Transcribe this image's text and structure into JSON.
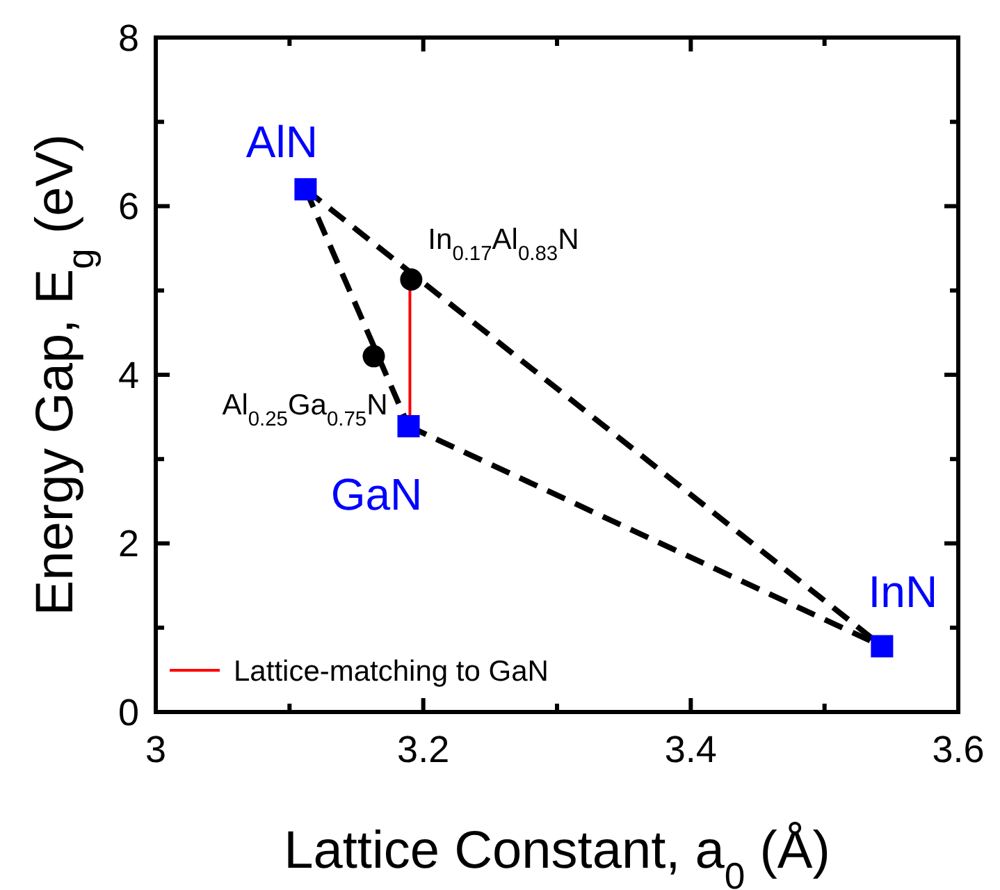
{
  "chart_data": {
    "type": "scatter",
    "xlabel": "Lattice Constant, a$_{0}$ (Å)",
    "ylabel": "Energy Gap, E$_{g}$ (eV)",
    "xlim": [
      3,
      3.6
    ],
    "xticks": [
      3,
      {
        "value": 3.1,
        "label": null
      },
      3.2,
      {
        "value": 3.3,
        "label": null
      },
      3.4,
      {
        "value": 3.5,
        "label": null
      },
      3.6
    ],
    "ylim": [
      0,
      8
    ],
    "yticks": [
      0,
      {
        "value": 1,
        "label": null
      },
      2,
      {
        "value": 3,
        "label": null
      },
      4,
      {
        "value": 5,
        "label": null
      },
      6,
      {
        "value": 7,
        "label": null
      },
      8
    ],
    "grid": false,
    "legend": "bottom left",
    "series": [
      {
        "type": "line",
        "color": "#000000",
        "line_style": "dashed",
        "marker": "none",
        "x": [
          3.112,
          3.189
        ],
        "values": [
          6.2,
          3.39
        ]
      },
      {
        "type": "line",
        "color": "#000000",
        "line_style": "dashed",
        "marker": "none",
        "x": [
          3.112,
          3.543
        ],
        "values": [
          6.2,
          0.78
        ]
      },
      {
        "type": "line",
        "color": "#000000",
        "line_style": "dashed",
        "marker": "none",
        "x": [
          3.189,
          3.543
        ],
        "values": [
          3.39,
          0.78
        ]
      },
      {
        "type": "line",
        "name": "Lattice-matching to GaN",
        "color": "#ff0000",
        "line_style": "solid",
        "marker": "none",
        "x": [
          3.19,
          3.19
        ],
        "values": [
          3.39,
          5.13
        ]
      },
      {
        "color": "#0000ff",
        "marker": "square",
        "x": [
          3.112,
          3.189,
          3.543
        ],
        "values": [
          6.2,
          3.39,
          0.78
        ]
      },
      {
        "color": "#000000",
        "marker": "circle",
        "x": [
          3.163,
          3.191
        ],
        "values": [
          4.22,
          5.13
        ]
      }
    ],
    "annotations": [
      {
        "text": "AlN",
        "x": 3.112,
        "y": 6.2
      },
      {
        "text": "GaN",
        "x": 3.189,
        "y": 3.39
      },
      {
        "text": "InN",
        "x": 3.543,
        "y": 0.78
      },
      {
        "text": "In$_{0.17}$Al$_{0.83}$N",
        "x": 3.191,
        "y": 5.13
      },
      {
        "text": "Al$_{0.25}$Ga$_{0.75}$N",
        "x": 3.163,
        "y": 4.22
      }
    ]
  }
}
